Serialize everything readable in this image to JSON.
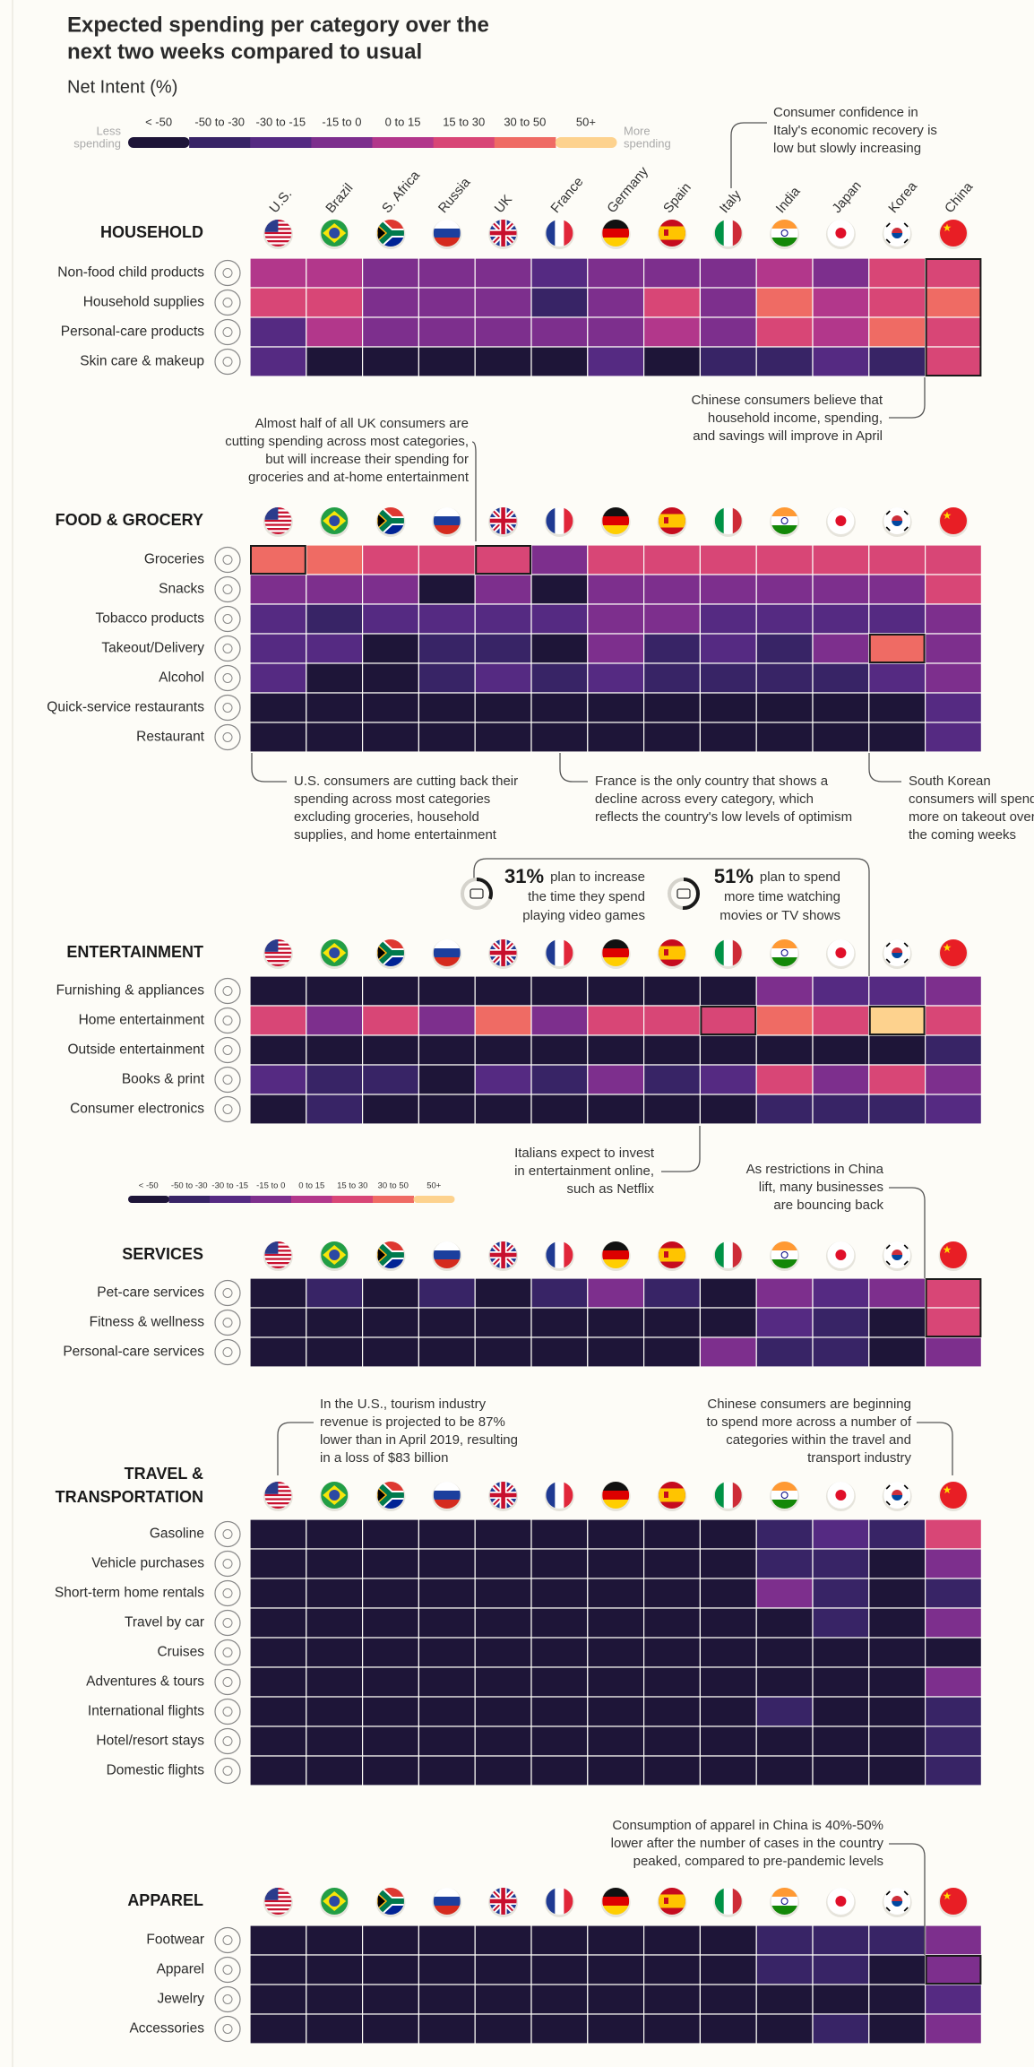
{
  "chart_data": {
    "type": "heatmap",
    "title": [
      "Expected spending per category over the",
      "next two weeks compared to usual"
    ],
    "subtitle": "Net Intent (%)",
    "legend": {
      "labels": [
        "< -50",
        "-50 to -30",
        "-30 to -15",
        "-15 to 0",
        "0 to 15",
        "15 to 30",
        "30 to 50",
        "50+"
      ],
      "colors": [
        "#1e1538",
        "#382466",
        "#552a82",
        "#7d2f8d",
        "#b2378b",
        "#d84676",
        "#ef6b64",
        "#fdd28e"
      ],
      "thresholds": [
        -50,
        -30,
        -15,
        0,
        15,
        30,
        50
      ],
      "less": [
        "Less",
        "spending"
      ],
      "more": [
        "More",
        "spending"
      ]
    },
    "countries": [
      "U.S.",
      "Brazil",
      "S. Africa",
      "Russia",
      "UK",
      "France",
      "Germany",
      "Spain",
      "Italy",
      "India",
      "Japan",
      "Korea",
      "China"
    ],
    "sections": [
      {
        "title": [
          "HOUSEHOLD"
        ],
        "categories": [
          "Non-food child products",
          "Household supplies",
          "Personal-care products",
          "Skin care & makeup"
        ],
        "values": [
          [
            8,
            8,
            -8,
            -8,
            -8,
            -22,
            -8,
            -8,
            -8,
            8,
            -8,
            22,
            22
          ],
          [
            22,
            22,
            -8,
            -8,
            -8,
            -40,
            -8,
            22,
            -8,
            40,
            8,
            22,
            40
          ],
          [
            -22,
            8,
            -8,
            -8,
            -8,
            -8,
            -8,
            8,
            -8,
            22,
            8,
            40,
            22
          ],
          [
            -22,
            -60,
            -60,
            -60,
            -60,
            -60,
            -22,
            -60,
            -40,
            -40,
            -22,
            -40,
            22
          ]
        ],
        "highlights": [
          [
            0,
            3,
            12
          ]
        ]
      },
      {
        "title": [
          "FOOD & GROCERY"
        ],
        "categories": [
          "Groceries",
          "Snacks",
          "Tobacco products",
          "Takeout/Delivery",
          "Alcohol",
          "Quick-service restaurants",
          "Restaurant"
        ],
        "values": [
          [
            40,
            40,
            22,
            22,
            22,
            -8,
            22,
            22,
            22,
            22,
            22,
            22,
            22
          ],
          [
            -8,
            -8,
            -8,
            -60,
            -8,
            -60,
            -8,
            -8,
            -8,
            -8,
            -8,
            -8,
            22
          ],
          [
            -22,
            -40,
            -22,
            -22,
            -22,
            -22,
            -8,
            -8,
            -22,
            -22,
            -22,
            -22,
            -8
          ],
          [
            -22,
            -22,
            -60,
            -40,
            -40,
            -60,
            -8,
            -40,
            -22,
            -40,
            -8,
            40,
            -8
          ],
          [
            -22,
            -60,
            -60,
            -40,
            -22,
            -40,
            -22,
            -40,
            -40,
            -40,
            -40,
            -22,
            -8
          ],
          [
            -60,
            -60,
            -60,
            -60,
            -60,
            -60,
            -60,
            -60,
            -60,
            -60,
            -60,
            -60,
            -22
          ],
          [
            -60,
            -60,
            -60,
            -60,
            -60,
            -60,
            -60,
            -60,
            -60,
            -60,
            -60,
            -60,
            -22
          ]
        ],
        "highlights": [
          [
            0,
            0,
            0
          ],
          [
            0,
            0,
            4
          ],
          [
            3,
            3,
            11
          ]
        ]
      },
      {
        "title": [
          "ENTERTAINMENT"
        ],
        "categories": [
          "Furnishing & appliances",
          "Home entertainment",
          "Outside entertainment",
          "Books & print",
          "Consumer electronics"
        ],
        "values": [
          [
            -60,
            -60,
            -60,
            -60,
            -60,
            -60,
            -60,
            -60,
            -60,
            -8,
            -22,
            -22,
            -8
          ],
          [
            22,
            -8,
            22,
            -8,
            40,
            -8,
            22,
            22,
            22,
            40,
            22,
            55,
            22
          ],
          [
            -60,
            -60,
            -60,
            -60,
            -60,
            -60,
            -60,
            -60,
            -60,
            -60,
            -60,
            -60,
            -40
          ],
          [
            -22,
            -40,
            -40,
            -60,
            -22,
            -40,
            -8,
            -40,
            -22,
            22,
            -8,
            22,
            -8
          ],
          [
            -60,
            -40,
            -60,
            -60,
            -60,
            -60,
            -60,
            -60,
            -60,
            -40,
            -40,
            -40,
            -22
          ]
        ],
        "highlights": [
          [
            1,
            1,
            8
          ],
          [
            1,
            1,
            11
          ]
        ]
      },
      {
        "title": [
          "SERVICES"
        ],
        "categories": [
          "Pet-care services",
          "Fitness & wellness",
          "Personal-care services"
        ],
        "values": [
          [
            -60,
            -40,
            -60,
            -40,
            -60,
            -40,
            -8,
            -40,
            -60,
            -8,
            -22,
            -8,
            22
          ],
          [
            -60,
            -60,
            -60,
            -60,
            -60,
            -60,
            -60,
            -60,
            -60,
            -22,
            -40,
            -60,
            22
          ],
          [
            -60,
            -60,
            -60,
            -60,
            -60,
            -60,
            -60,
            -60,
            -8,
            -40,
            -40,
            -60,
            -8
          ]
        ],
        "highlights": [
          [
            0,
            1,
            12
          ]
        ]
      },
      {
        "title": [
          "TRAVEL &",
          "TRANSPORTATION"
        ],
        "categories": [
          "Gasoline",
          "Vehicle purchases",
          "Short-term home rentals",
          "Travel by car",
          "Cruises",
          "Adventures & tours",
          "International flights",
          "Hotel/resort stays",
          "Domestic flights"
        ],
        "values": [
          [
            -60,
            -60,
            -60,
            -60,
            -60,
            -60,
            -60,
            -60,
            -60,
            -40,
            -22,
            -40,
            22
          ],
          [
            -60,
            -60,
            -60,
            -60,
            -60,
            -60,
            -60,
            -60,
            -60,
            -40,
            -40,
            -60,
            -8
          ],
          [
            -60,
            -60,
            -60,
            -60,
            -60,
            -60,
            -60,
            -60,
            -60,
            -8,
            -40,
            -60,
            -40
          ],
          [
            -60,
            -60,
            -60,
            -60,
            -60,
            -60,
            -60,
            -60,
            -60,
            -60,
            -40,
            -60,
            -8
          ],
          [
            -60,
            -60,
            -60,
            -60,
            -60,
            -60,
            -60,
            -60,
            -60,
            -60,
            -60,
            -60,
            -60
          ],
          [
            -60,
            -60,
            -60,
            -60,
            -60,
            -60,
            -60,
            -60,
            -60,
            -60,
            -60,
            -60,
            -8
          ],
          [
            -60,
            -60,
            -60,
            -60,
            -60,
            -60,
            -60,
            -60,
            -60,
            -40,
            -60,
            -60,
            -40
          ],
          [
            -60,
            -60,
            -60,
            -60,
            -60,
            -60,
            -60,
            -60,
            -60,
            -60,
            -60,
            -60,
            -40
          ],
          [
            -60,
            -60,
            -60,
            -60,
            -60,
            -60,
            -60,
            -60,
            -60,
            -60,
            -60,
            -60,
            -40
          ]
        ],
        "highlights": []
      },
      {
        "title": [
          "APPAREL"
        ],
        "categories": [
          "Footwear",
          "Apparel",
          "Jewelry",
          "Accessories"
        ],
        "values": [
          [
            -60,
            -60,
            -60,
            -60,
            -60,
            -60,
            -60,
            -60,
            -60,
            -40,
            -40,
            -40,
            -8
          ],
          [
            -60,
            -60,
            -60,
            -60,
            -60,
            -60,
            -60,
            -60,
            -60,
            -40,
            -40,
            -60,
            -8
          ],
          [
            -60,
            -60,
            -60,
            -60,
            -60,
            -60,
            -60,
            -60,
            -60,
            -60,
            -60,
            -60,
            -22
          ],
          [
            -60,
            -60,
            -60,
            -60,
            -60,
            -60,
            -60,
            -60,
            -60,
            -60,
            -40,
            -60,
            -8
          ]
        ],
        "highlights": [
          [
            1,
            1,
            12
          ]
        ]
      }
    ],
    "annotations": [
      {
        "lines": [
          "Consumer confidence in",
          "Italy's economic recovery is",
          "low but slowly increasing"
        ]
      },
      {
        "lines": [
          "Chinese consumers believe that",
          "household income, spending,",
          "and savings will improve in April"
        ]
      },
      {
        "lines": [
          "Almost half of all UK consumers are",
          "cutting spending across most categories,",
          "but will increase their spending for",
          "groceries and at-home entertainment"
        ]
      },
      {
        "lines": [
          "U.S. consumers are cutting back their",
          "spending across most categories",
          "excluding groceries, household",
          "supplies, and home entertainment"
        ]
      },
      {
        "lines": [
          "France is the only country that shows a",
          "decline across every category, which",
          "reflects the country's low levels of optimism"
        ]
      },
      {
        "lines": [
          "South Korean",
          "consumers will spend",
          "more on takeout over",
          "the coming weeks"
        ]
      },
      {
        "lines": [
          "Italians expect to invest",
          "in entertainment online,",
          "such as Netflix"
        ]
      },
      {
        "lines": [
          "As restrictions in China",
          "lift, many businesses",
          "are bouncing back"
        ]
      },
      {
        "lines": [
          "In the U.S., tourism industry",
          "revenue is projected to be 87%",
          "lower than in April 2019, resulting",
          "in a loss of $83 billion"
        ]
      },
      {
        "lines": [
          "Chinese consumers are beginning",
          "to spend more across a number of",
          "categories within the travel and",
          "transport industry"
        ]
      },
      {
        "lines": [
          "Consumption of apparel in China is 40%-50%",
          "lower after the number of cases in the country",
          "peaked, compared to pre-pandemic levels"
        ]
      }
    ],
    "stats": [
      {
        "value": 31,
        "value_label": "31%",
        "lines": [
          "plan to increase",
          "the time they spend",
          "playing video games"
        ]
      },
      {
        "value": 51,
        "value_label": "51%",
        "lines": [
          "plan to spend",
          "more time watching",
          "movies or TV shows"
        ]
      }
    ]
  }
}
